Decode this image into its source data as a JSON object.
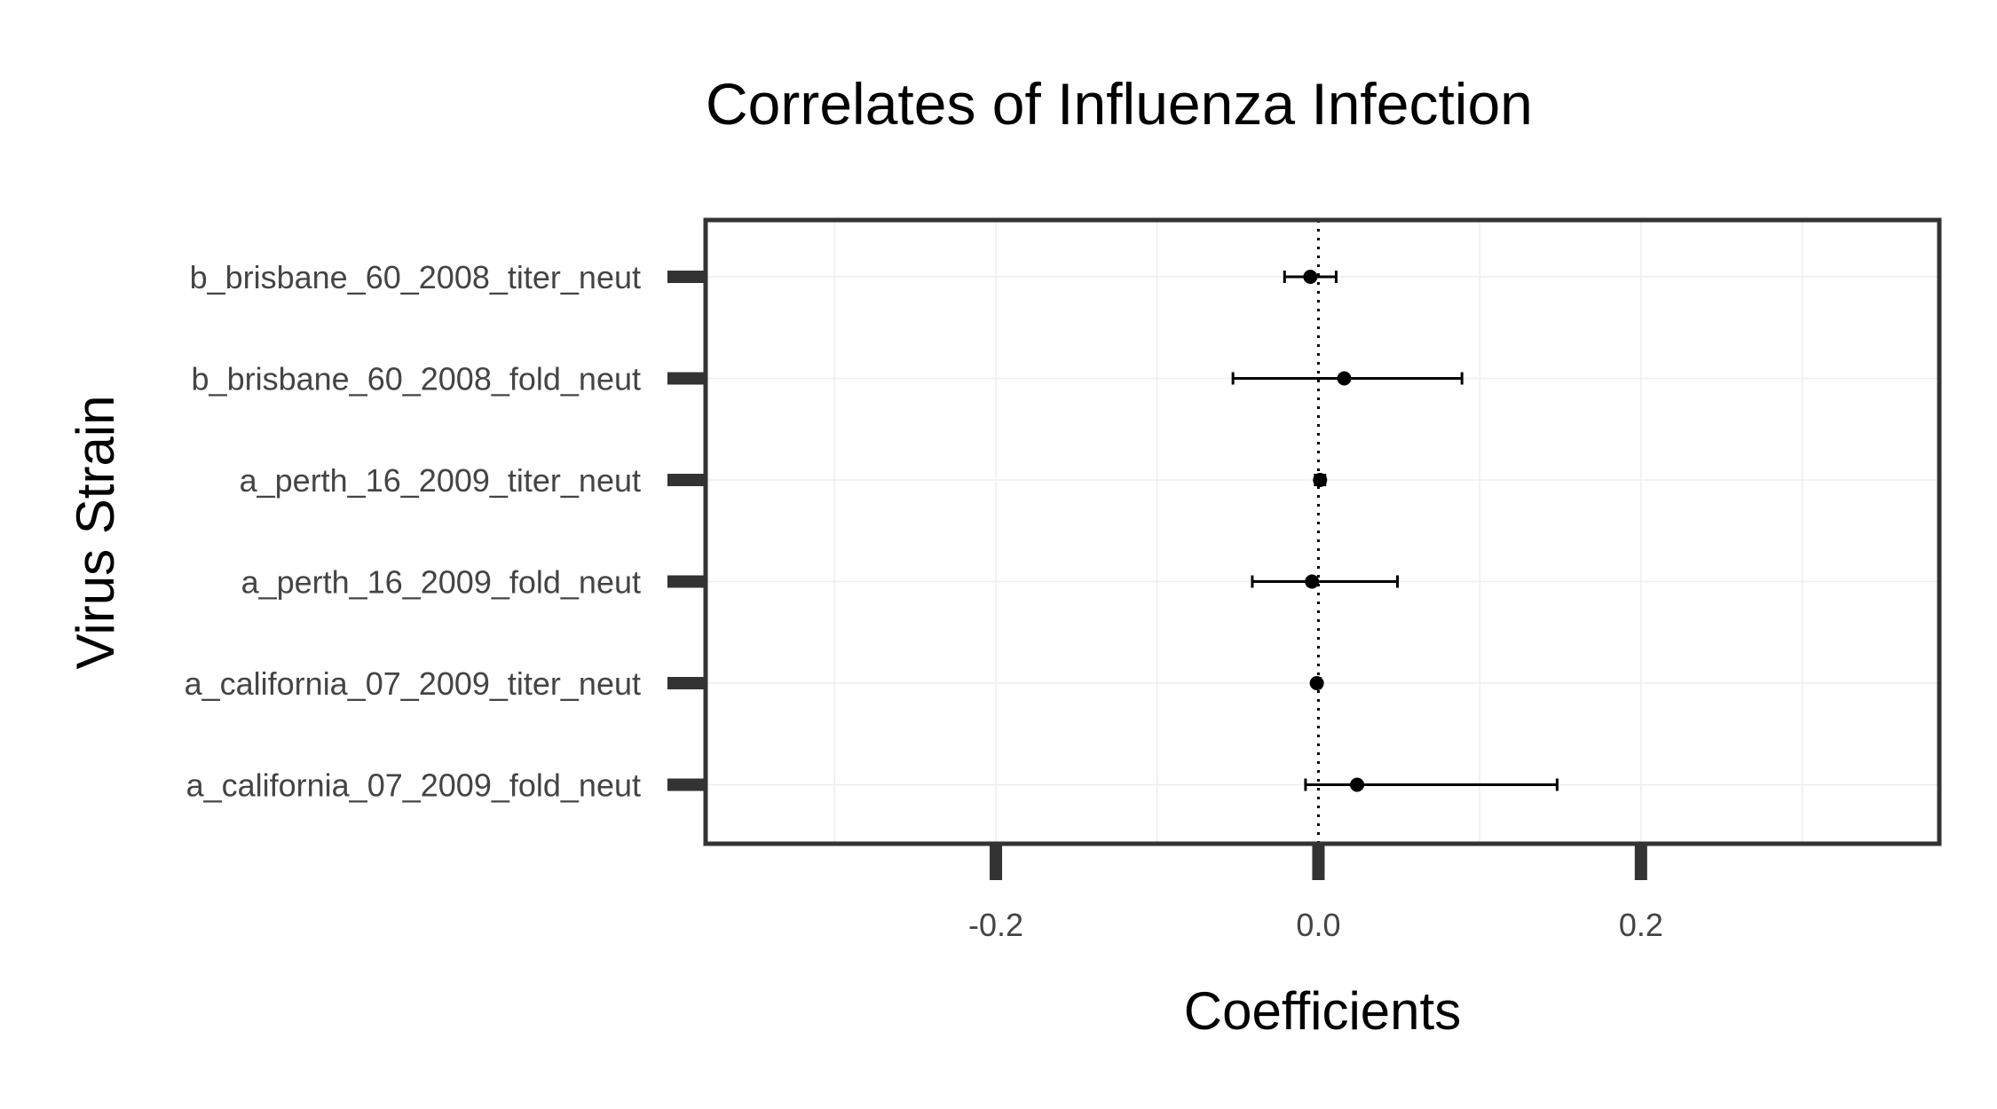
{
  "chart_data": {
    "type": "scatter",
    "title": "Correlates of Influenza Infection",
    "xlabel": "Coefficients",
    "ylabel": "Virus Strain",
    "xlim": [
      -0.38,
      0.385
    ],
    "x_ticks": [
      -0.2,
      0.0,
      0.2
    ],
    "x_tick_labels": [
      "-0.2",
      "0.0",
      "0.2"
    ],
    "reference_line_x": 0.0,
    "grid": true,
    "categories": [
      "b_brisbane_60_2008_titer_neut",
      "b_brisbane_60_2008_fold_neut",
      "a_perth_16_2009_titer_neut",
      "a_perth_16_2009_fold_neut",
      "a_california_07_2009_titer_neut",
      "a_california_07_2009_fold_neut"
    ],
    "series": [
      {
        "estimates": [
          -0.005,
          0.016,
          0.001,
          -0.004,
          -0.001,
          0.024
        ],
        "ci_low": [
          -0.021,
          -0.053,
          -0.002,
          -0.041,
          -0.002,
          -0.008
        ],
        "ci_high": [
          0.011,
          0.089,
          0.004,
          0.049,
          0.001,
          0.148
        ]
      }
    ]
  }
}
